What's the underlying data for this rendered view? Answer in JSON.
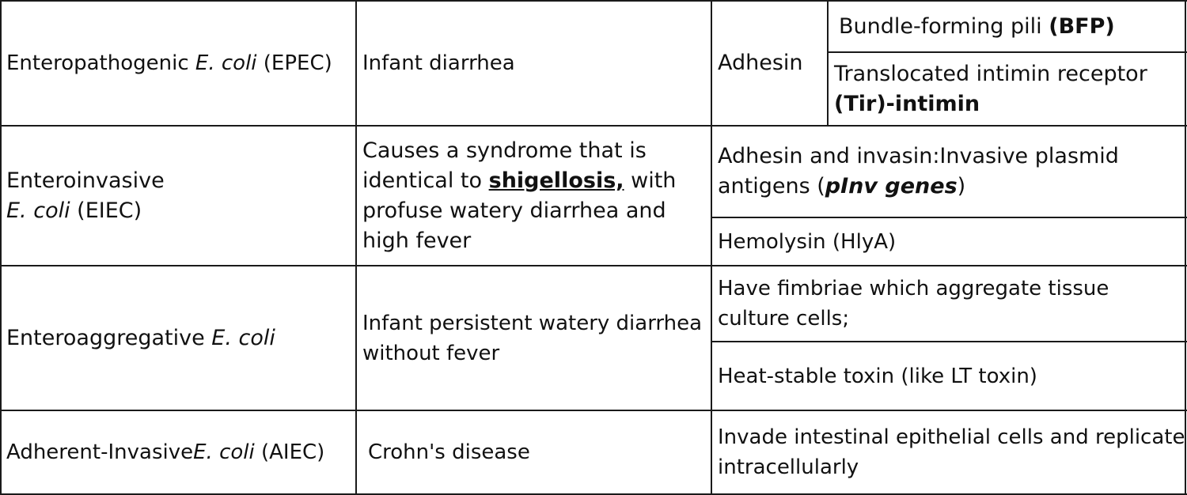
{
  "table": {
    "rows": [
      {
        "pathotype": {
          "prefix": "Enteropathogenic ",
          "species": "E. coli",
          "suffix": " (EPEC)"
        },
        "disease": "Infant diarrhea",
        "factor_group": "Adhesin",
        "factors": [
          {
            "text": "Bundle-forming pili ",
            "bold": "(BFP)"
          },
          {
            "line1": "Translocated intimin receptor",
            "line2": "(Tir)-intimin"
          }
        ]
      },
      {
        "pathotype": {
          "line1": "Enteroinvasive",
          "species": "E. coli",
          "suffix": " (EIEC)"
        },
        "disease": {
          "line1": "Causes a syndrome that is",
          "line2_prefix": "identical to  ",
          "link": "shigellosis,",
          "line2_suffix": " with",
          "line3": "profuse watery diarrhea and",
          "line4": "high fever"
        },
        "factors": [
          {
            "line1": "Adhesin and invasin:Invasive plasmid",
            "line2_prefix": "antigens (",
            "italic": "pInv genes",
            "line2_suffix": ")"
          },
          {
            "text": "Hemolysin (HlyA)"
          }
        ]
      },
      {
        "pathotype": {
          "prefix": "Enteroaggregative ",
          "species": "E. coli"
        },
        "disease": {
          "line1": "Infant persistent watery diarrhea",
          "line2": "without fever"
        },
        "factors": [
          {
            "line1": "Have fimbriae which aggregate tissue",
            "line2": "culture cells;"
          },
          {
            "text": "Heat-stable toxin (like LT toxin)"
          }
        ]
      },
      {
        "pathotype": {
          "prefix": "Adherent-Invasive",
          "species": "E. coli",
          "suffix": " (AIEC)"
        },
        "disease": "Crohn's disease",
        "factors": [
          {
            "line1": "Invade intestinal epithelial cells and replicate",
            "line2": "intracellularly"
          }
        ]
      }
    ]
  }
}
